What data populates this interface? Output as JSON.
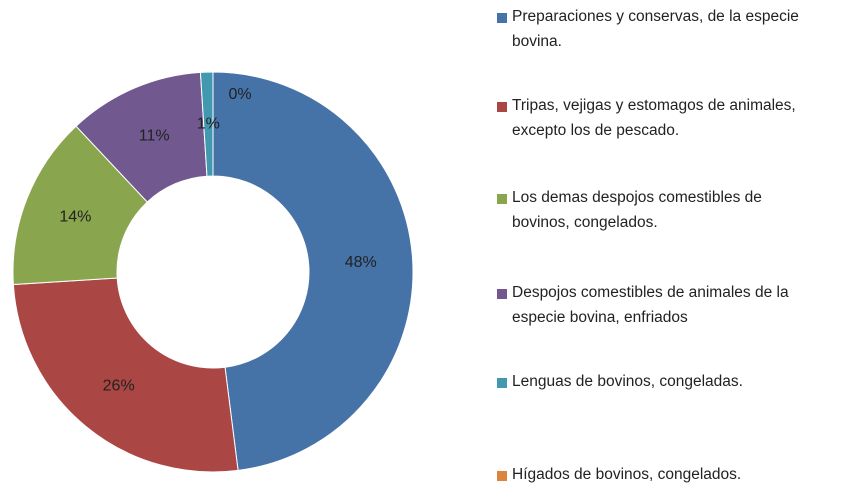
{
  "chart_data": {
    "type": "donut",
    "categories": [
      "Preparaciones y conservas, de la especie bovina.",
      "Tripas, vejigas y estomagos de animales, excepto los de pescado.",
      "Los demas despojos comestibles de bovinos, congelados.",
      "Despojos comestibles de animales de la especie bovina, enfriados",
      "Lenguas de bovinos, congeladas.",
      "Hígados de bovinos, congelados."
    ],
    "values": [
      48,
      26,
      14,
      11,
      1,
      0
    ],
    "value_labels": [
      "48%",
      "26%",
      "14%",
      "11%",
      "1%",
      "0%"
    ],
    "colors": [
      "#4572a7",
      "#aa4643",
      "#89a54e",
      "#71588f",
      "#4198af",
      "#db843d"
    ],
    "legend": "right"
  }
}
